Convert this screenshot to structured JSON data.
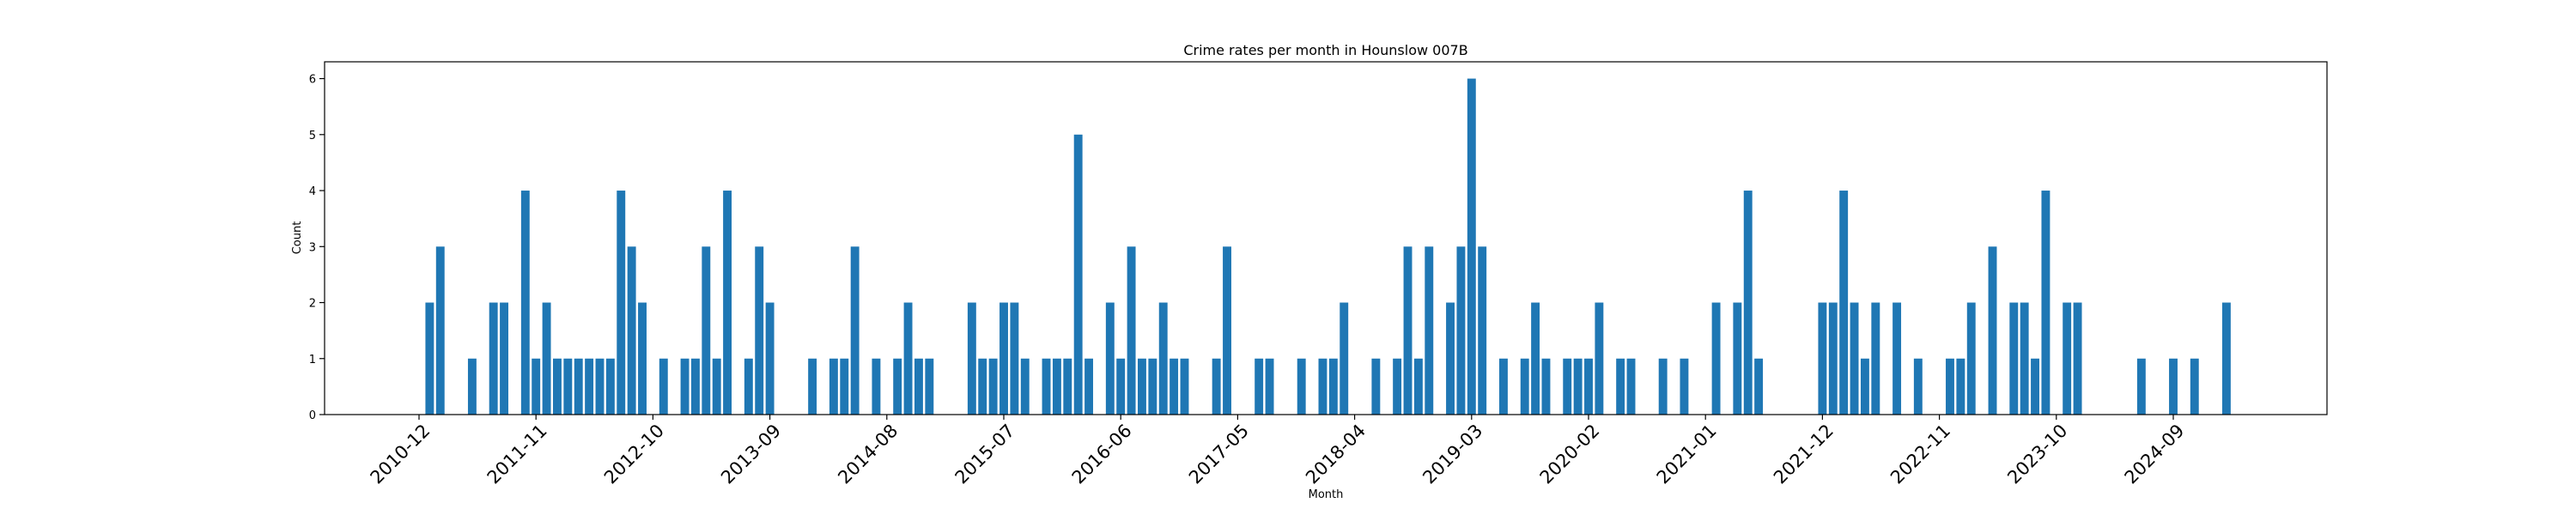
{
  "chart_data": {
    "type": "bar",
    "title": "Crime rates per month in Hounslow 007B",
    "xlabel": "Month",
    "ylabel": "Count",
    "ylim": [
      0,
      6.3
    ],
    "yticks": [
      0,
      1,
      2,
      3,
      4,
      5,
      6
    ],
    "xticks": [
      "2010-12",
      "2011-11",
      "2012-10",
      "2013-09",
      "2014-08",
      "2015-07",
      "2016-06",
      "2017-05",
      "2018-04",
      "2019-03",
      "2020-02",
      "2021-01",
      "2021-12",
      "2022-11",
      "2023-10",
      "2024-09"
    ],
    "series_color": "#1f77b4",
    "grid": false,
    "points": [
      {
        "x": "2011-01",
        "y": 2
      },
      {
        "x": "2011-02",
        "y": 3
      },
      {
        "x": "2011-05",
        "y": 1
      },
      {
        "x": "2011-07",
        "y": 2
      },
      {
        "x": "2011-08",
        "y": 2
      },
      {
        "x": "2011-10",
        "y": 4
      },
      {
        "x": "2011-11",
        "y": 1
      },
      {
        "x": "2011-12",
        "y": 2
      },
      {
        "x": "2012-01",
        "y": 1
      },
      {
        "x": "2012-02",
        "y": 1
      },
      {
        "x": "2012-03",
        "y": 1
      },
      {
        "x": "2012-04",
        "y": 1
      },
      {
        "x": "2012-05",
        "y": 1
      },
      {
        "x": "2012-06",
        "y": 1
      },
      {
        "x": "2012-07",
        "y": 4
      },
      {
        "x": "2012-08",
        "y": 3
      },
      {
        "x": "2012-09",
        "y": 2
      },
      {
        "x": "2012-11",
        "y": 1
      },
      {
        "x": "2013-01",
        "y": 1
      },
      {
        "x": "2013-02",
        "y": 1
      },
      {
        "x": "2013-03",
        "y": 3
      },
      {
        "x": "2013-04",
        "y": 1
      },
      {
        "x": "2013-05",
        "y": 4
      },
      {
        "x": "2013-07",
        "y": 1
      },
      {
        "x": "2013-08",
        "y": 3
      },
      {
        "x": "2013-09",
        "y": 2
      },
      {
        "x": "2014-01",
        "y": 1
      },
      {
        "x": "2014-03",
        "y": 1
      },
      {
        "x": "2014-04",
        "y": 1
      },
      {
        "x": "2014-05",
        "y": 3
      },
      {
        "x": "2014-07",
        "y": 1
      },
      {
        "x": "2014-09",
        "y": 1
      },
      {
        "x": "2014-10",
        "y": 2
      },
      {
        "x": "2014-11",
        "y": 1
      },
      {
        "x": "2014-12",
        "y": 1
      },
      {
        "x": "2015-04",
        "y": 2
      },
      {
        "x": "2015-05",
        "y": 1
      },
      {
        "x": "2015-06",
        "y": 1
      },
      {
        "x": "2015-07",
        "y": 2
      },
      {
        "x": "2015-08",
        "y": 2
      },
      {
        "x": "2015-09",
        "y": 1
      },
      {
        "x": "2015-11",
        "y": 1
      },
      {
        "x": "2015-12",
        "y": 1
      },
      {
        "x": "2016-01",
        "y": 1
      },
      {
        "x": "2016-02",
        "y": 5
      },
      {
        "x": "2016-03",
        "y": 1
      },
      {
        "x": "2016-05",
        "y": 2
      },
      {
        "x": "2016-06",
        "y": 1
      },
      {
        "x": "2016-07",
        "y": 3
      },
      {
        "x": "2016-08",
        "y": 1
      },
      {
        "x": "2016-09",
        "y": 1
      },
      {
        "x": "2016-10",
        "y": 2
      },
      {
        "x": "2016-11",
        "y": 1
      },
      {
        "x": "2016-12",
        "y": 1
      },
      {
        "x": "2017-03",
        "y": 1
      },
      {
        "x": "2017-04",
        "y": 3
      },
      {
        "x": "2017-07",
        "y": 1
      },
      {
        "x": "2017-08",
        "y": 1
      },
      {
        "x": "2017-11",
        "y": 1
      },
      {
        "x": "2018-01",
        "y": 1
      },
      {
        "x": "2018-02",
        "y": 1
      },
      {
        "x": "2018-03",
        "y": 2
      },
      {
        "x": "2018-06",
        "y": 1
      },
      {
        "x": "2018-08",
        "y": 1
      },
      {
        "x": "2018-09",
        "y": 3
      },
      {
        "x": "2018-10",
        "y": 1
      },
      {
        "x": "2018-11",
        "y": 3
      },
      {
        "x": "2019-01",
        "y": 2
      },
      {
        "x": "2019-02",
        "y": 3
      },
      {
        "x": "2019-03",
        "y": 6
      },
      {
        "x": "2019-04",
        "y": 3
      },
      {
        "x": "2019-06",
        "y": 1
      },
      {
        "x": "2019-08",
        "y": 1
      },
      {
        "x": "2019-09",
        "y": 2
      },
      {
        "x": "2019-10",
        "y": 1
      },
      {
        "x": "2019-12",
        "y": 1
      },
      {
        "x": "2020-01",
        "y": 1
      },
      {
        "x": "2020-02",
        "y": 1
      },
      {
        "x": "2020-03",
        "y": 2
      },
      {
        "x": "2020-05",
        "y": 1
      },
      {
        "x": "2020-06",
        "y": 1
      },
      {
        "x": "2020-09",
        "y": 1
      },
      {
        "x": "2020-11",
        "y": 1
      },
      {
        "x": "2021-02",
        "y": 2
      },
      {
        "x": "2021-04",
        "y": 2
      },
      {
        "x": "2021-05",
        "y": 4
      },
      {
        "x": "2021-06",
        "y": 1
      },
      {
        "x": "2021-12",
        "y": 2
      },
      {
        "x": "2022-01",
        "y": 2
      },
      {
        "x": "2022-02",
        "y": 4
      },
      {
        "x": "2022-03",
        "y": 2
      },
      {
        "x": "2022-04",
        "y": 1
      },
      {
        "x": "2022-05",
        "y": 2
      },
      {
        "x": "2022-07",
        "y": 2
      },
      {
        "x": "2022-09",
        "y": 1
      },
      {
        "x": "2022-12",
        "y": 1
      },
      {
        "x": "2023-01",
        "y": 1
      },
      {
        "x": "2023-02",
        "y": 2
      },
      {
        "x": "2023-04",
        "y": 3
      },
      {
        "x": "2023-06",
        "y": 2
      },
      {
        "x": "2023-07",
        "y": 2
      },
      {
        "x": "2023-08",
        "y": 1
      },
      {
        "x": "2023-09",
        "y": 4
      },
      {
        "x": "2023-11",
        "y": 2
      },
      {
        "x": "2023-12",
        "y": 2
      },
      {
        "x": "2024-06",
        "y": 1
      },
      {
        "x": "2024-09",
        "y": 1
      },
      {
        "x": "2024-11",
        "y": 1
      },
      {
        "x": "2025-02",
        "y": 2
      }
    ]
  }
}
